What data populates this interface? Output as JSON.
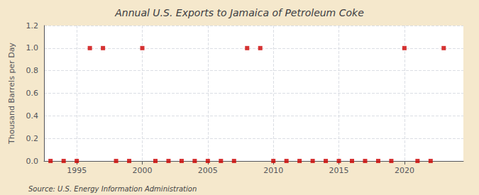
{
  "chart_data": {
    "type": "scatter",
    "title": "Annual U.S. Exports to Jamaica of Petroleum Coke",
    "ylabel": "Thousand Barrels per Day",
    "annotations": [
      "Source: U.S. Energy Information Administration"
    ],
    "x": [
      1993,
      1994,
      1995,
      1996,
      1997,
      1998,
      1999,
      2000,
      2001,
      2002,
      2003,
      2004,
      2005,
      2006,
      2007,
      2008,
      2009,
      2010,
      2011,
      2012,
      2013,
      2014,
      2015,
      2016,
      2017,
      2018,
      2019,
      2020,
      2021,
      2022,
      2023
    ],
    "values": [
      0,
      0,
      0,
      1,
      1,
      0,
      0,
      1,
      0,
      0,
      0,
      0,
      0,
      0,
      0,
      1,
      1,
      0,
      0,
      0,
      0,
      0,
      0,
      0,
      0,
      0,
      0,
      1,
      0,
      0,
      1
    ],
    "color": "#cc0000",
    "marker": "square",
    "xlim": [
      1992.5,
      2024.5
    ],
    "ylim": [
      0.0,
      1.2
    ],
    "xticks": [
      1995,
      2000,
      2005,
      2010,
      2015,
      2020
    ],
    "yticks": [
      {
        "value": 0,
        "label": "0.0"
      },
      0.2,
      0.4,
      0.6,
      0.8,
      {
        "value": 1,
        "label": "1.0"
      },
      1.2
    ],
    "grid": true
  }
}
